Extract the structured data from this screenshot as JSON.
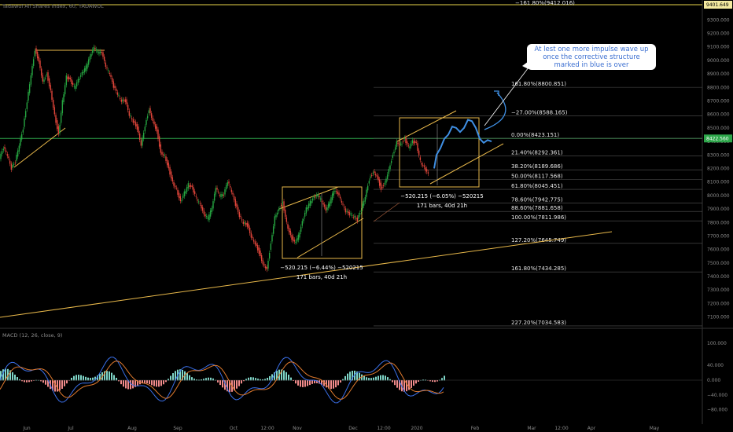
{
  "title": "Tadawul All Shares Index, 60, TADAWUL",
  "callout_text": "At lest one more impulse wave up once the corrective structure marked in blue is over",
  "macd_label": "MACD (12, 26, close, 9)",
  "price_badge_top": "9401.649",
  "price_badge_cur": "8422.560",
  "measure_label_1a": "−520.215 (−6.44%) −520215",
  "measure_label_1b": "171 bars, 40d 21h",
  "measure_label_2a": "−520.215 (−6.05%) −520215",
  "measure_label_2b": "171 bars, 40d 21h",
  "colors": {
    "up": "#26a641",
    "down": "#e0453a",
    "fib": "#f0f0f0",
    "trend": "#e8b84a",
    "blue": "#3f8fe3",
    "macd": "#3a6fe8",
    "signal": "#e07a2e"
  },
  "chart_data": {
    "type": "line",
    "y_axis": {
      "ticks": [
        "9400.000",
        "9300.000",
        "9200.000",
        "9100.000",
        "9000.000",
        "8900.000",
        "8800.000",
        "8700.000",
        "8600.000",
        "8500.000",
        "8400.000",
        "8300.000",
        "8200.000",
        "8100.000",
        "8000.000",
        "7900.000",
        "7800.000",
        "7700.000",
        "7600.000",
        "7500.000",
        "7400.000",
        "7300.000",
        "7200.000",
        "7100.000"
      ],
      "values": [
        9400,
        9300,
        9200,
        9100,
        9000,
        8900,
        8800,
        8700,
        8600,
        8500,
        8400,
        8300,
        8200,
        8100,
        8000,
        7900,
        7800,
        7700,
        7600,
        7500,
        7400,
        7300,
        7200,
        7100
      ],
      "ylim": [
        7034,
        9412
      ]
    },
    "x_axis": {
      "ticks": [
        "Jun",
        "Jul",
        "Aug",
        "Sep",
        "Oct",
        "12:00",
        "Nov",
        "Dec",
        "12:00",
        "2020",
        "Feb",
        "Mar",
        "12:00",
        "Apr",
        "May"
      ]
    },
    "macd_axis": {
      "ticks": [
        "100.000",
        "40.000",
        "0.000",
        "−40.000",
        "−80.000"
      ],
      "values": [
        100,
        40,
        0,
        -40,
        -80
      ]
    },
    "fib_levels": [
      {
        "label": "−161.80%(9412.016)",
        "value": 9412.016
      },
      {
        "label": "161.80%(8800.851)",
        "value": 8800.851
      },
      {
        "label": "−27.00%(8588.165)",
        "value": 8588.165
      },
      {
        "label": "0.00%(8423.151)",
        "value": 8423.151
      },
      {
        "label": "21.40%(8292.361)",
        "value": 8292.361
      },
      {
        "label": "38.20%(8189.686)",
        "value": 8189.686
      },
      {
        "label": "50.00%(8117.568)",
        "value": 8117.568
      },
      {
        "label": "61.80%(8045.451)",
        "value": 8045.451
      },
      {
        "label": "78.60%(7942.775)",
        "value": 7942.775
      },
      {
        "label": "88.60%(7881.658)",
        "value": 7881.658
      },
      {
        "label": "100.00%(7811.986)",
        "value": 7811.986
      },
      {
        "label": "127.20%(7645.749)",
        "value": 7645.749
      },
      {
        "label": "161.80%(7434.285)",
        "value": 7434.285
      },
      {
        "label": "227.20%(7034.583)",
        "value": 7034.583
      }
    ],
    "price_path": [
      [
        0,
        8270
      ],
      [
        5,
        8350
      ],
      [
        10,
        8300
      ],
      [
        15,
        8200
      ],
      [
        20,
        8250
      ],
      [
        25,
        8380
      ],
      [
        30,
        8500
      ],
      [
        35,
        8700
      ],
      [
        40,
        8900
      ],
      [
        45,
        9080
      ],
      [
        50,
        9000
      ],
      [
        55,
        8850
      ],
      [
        60,
        8900
      ],
      [
        65,
        8780
      ],
      [
        70,
        8600
      ],
      [
        75,
        8450
      ],
      [
        80,
        8700
      ],
      [
        85,
        8880
      ],
      [
        90,
        8850
      ],
      [
        95,
        8800
      ],
      [
        100,
        8850
      ],
      [
        105,
        8900
      ],
      [
        110,
        8950
      ],
      [
        115,
        9020
      ],
      [
        120,
        9090
      ],
      [
        125,
        9060
      ],
      [
        130,
        9050
      ],
      [
        135,
        8950
      ],
      [
        140,
        8900
      ],
      [
        145,
        8800
      ],
      [
        150,
        8750
      ],
      [
        155,
        8700
      ],
      [
        160,
        8700
      ],
      [
        165,
        8600
      ],
      [
        170,
        8550
      ],
      [
        175,
        8500
      ],
      [
        180,
        8380
      ],
      [
        185,
        8520
      ],
      [
        190,
        8640
      ],
      [
        195,
        8560
      ],
      [
        200,
        8480
      ],
      [
        205,
        8320
      ],
      [
        210,
        8300
      ],
      [
        215,
        8200
      ],
      [
        220,
        8100
      ],
      [
        225,
        8050
      ],
      [
        230,
        7950
      ],
      [
        235,
        8020
      ],
      [
        240,
        8080
      ],
      [
        245,
        8050
      ],
      [
        250,
        7980
      ],
      [
        255,
        7930
      ],
      [
        260,
        7850
      ],
      [
        265,
        7830
      ],
      [
        270,
        7900
      ],
      [
        275,
        8050
      ],
      [
        280,
        8000
      ],
      [
        285,
        8000
      ],
      [
        290,
        8100
      ],
      [
        295,
        8030
      ],
      [
        300,
        7930
      ],
      [
        305,
        7850
      ],
      [
        310,
        7800
      ],
      [
        315,
        7780
      ],
      [
        320,
        7700
      ],
      [
        325,
        7650
      ],
      [
        330,
        7580
      ],
      [
        335,
        7500
      ],
      [
        340,
        7460
      ],
      [
        345,
        7650
      ],
      [
        350,
        7850
      ],
      [
        355,
        7900
      ],
      [
        360,
        7950
      ],
      [
        365,
        7800
      ],
      [
        370,
        7700
      ],
      [
        375,
        7650
      ],
      [
        380,
        7700
      ],
      [
        385,
        7800
      ],
      [
        390,
        7900
      ],
      [
        395,
        7950
      ],
      [
        400,
        7980
      ],
      [
        405,
        8000
      ],
      [
        410,
        7950
      ],
      [
        415,
        7880
      ],
      [
        420,
        7950
      ],
      [
        425,
        8030
      ],
      [
        430,
        8010
      ],
      [
        435,
        7950
      ],
      [
        440,
        7880
      ],
      [
        445,
        7860
      ],
      [
        450,
        7850
      ],
      [
        455,
        7820
      ],
      [
        460,
        7900
      ],
      [
        465,
        8000
      ],
      [
        470,
        8120
      ],
      [
        475,
        8180
      ],
      [
        480,
        8150
      ],
      [
        485,
        8050
      ],
      [
        490,
        8100
      ],
      [
        495,
        8200
      ],
      [
        500,
        8300
      ],
      [
        505,
        8400
      ],
      [
        510,
        8380
      ],
      [
        515,
        8420
      ],
      [
        520,
        8360
      ],
      [
        525,
        8400
      ],
      [
        530,
        8380
      ],
      [
        535,
        8250
      ],
      [
        540,
        8200
      ],
      [
        545,
        8150
      ]
    ],
    "blue_path": [
      [
        552,
        8200
      ],
      [
        555,
        8300
      ],
      [
        560,
        8350
      ],
      [
        565,
        8420
      ],
      [
        570,
        8450
      ],
      [
        575,
        8510
      ],
      [
        580,
        8500
      ],
      [
        585,
        8470
      ],
      [
        590,
        8500
      ],
      [
        595,
        8560
      ],
      [
        600,
        8550
      ],
      [
        605,
        8500
      ],
      [
        610,
        8420
      ],
      [
        615,
        8390
      ],
      [
        620,
        8410
      ],
      [
        625,
        8400
      ]
    ]
  }
}
